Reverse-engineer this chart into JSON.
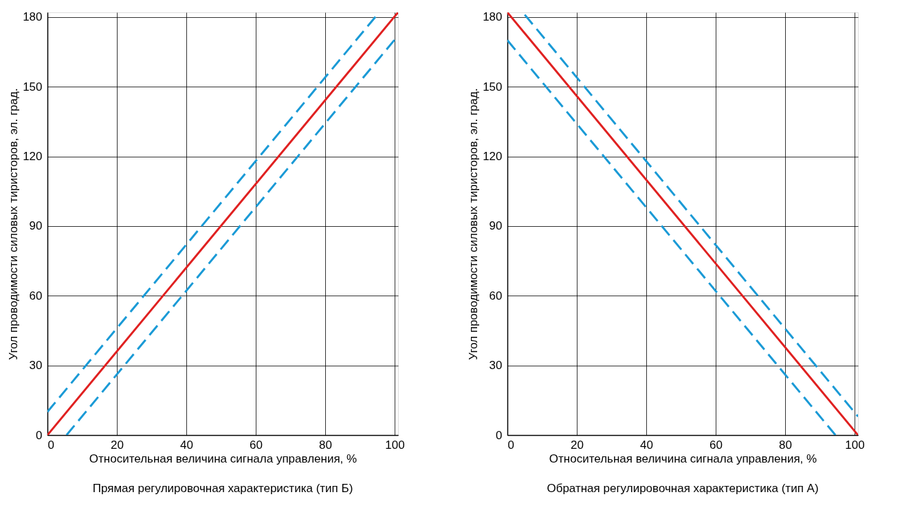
{
  "chart_data": [
    {
      "type": "line",
      "xlabel": "Относительная величина сигнала управления, %",
      "ylabel": "Угол проводимости силовых тиристоров, эл. град.",
      "annotations": [
        "Прямая регулировочная характеристика (тип Б)"
      ],
      "xlim": [
        0,
        101
      ],
      "ylim": [
        0,
        182
      ],
      "xticks": [
        0,
        20,
        40,
        60,
        80,
        100
      ],
      "yticks": [
        0,
        30,
        60,
        90,
        120,
        150,
        180
      ],
      "grid": true,
      "marker": "none",
      "series": [
        {
          "color": "#1a9ad6",
          "line_style": "dashed",
          "x": [
            0,
            95
          ],
          "values": [
            10,
            181
          ]
        },
        {
          "color": "#1a9ad6",
          "line_style": "dashed",
          "x": [
            5.5,
            101
          ],
          "values": [
            0,
            172
          ]
        },
        {
          "color": "#e02020",
          "line_style": "solid",
          "x": [
            0,
            101
          ],
          "values": [
            0,
            182
          ]
        }
      ]
    },
    {
      "type": "line",
      "xlabel": "Относительная величина сигнала управления, %",
      "ylabel": "Угол проводимости силовых тиристоров, эл. град.",
      "annotations": [
        "Обратная регулировочная характеристика (тип А)"
      ],
      "xlim": [
        0,
        101
      ],
      "ylim": [
        0,
        182
      ],
      "xticks": [
        0,
        20,
        40,
        60,
        80,
        100
      ],
      "yticks": [
        0,
        30,
        60,
        90,
        120,
        150,
        180
      ],
      "grid": true,
      "marker": "none",
      "series": [
        {
          "color": "#1a9ad6",
          "line_style": "dashed",
          "x": [
            5,
            101
          ],
          "values": [
            181,
            8
          ]
        },
        {
          "color": "#1a9ad6",
          "line_style": "dashed",
          "x": [
            0,
            94.5
          ],
          "values": [
            170,
            0
          ]
        },
        {
          "color": "#e02020",
          "line_style": "solid",
          "x": [
            0,
            101
          ],
          "values": [
            182,
            0
          ]
        }
      ]
    }
  ]
}
